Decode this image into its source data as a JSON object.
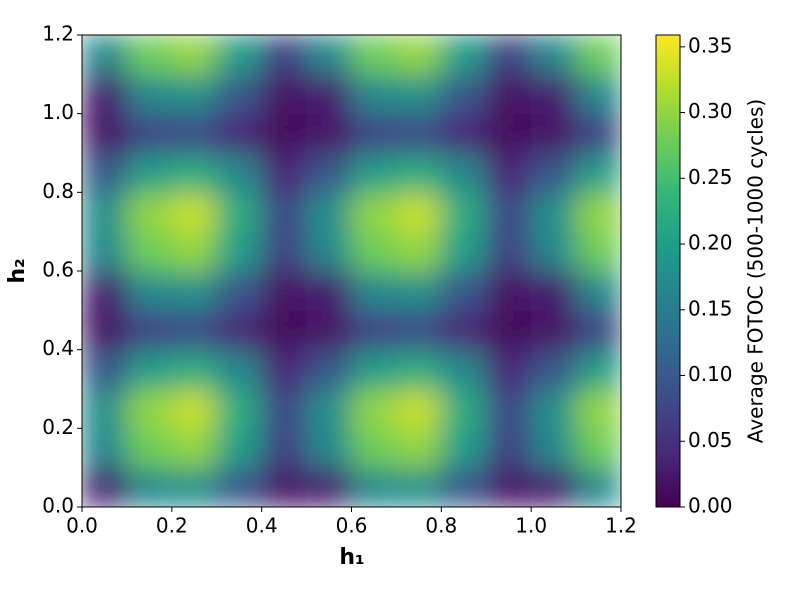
{
  "chart_data": {
    "type": "heatmap",
    "xlabel": "h₁",
    "ylabel": "h₂",
    "colorbar_label": "Average FOTOC (500-1000 cycles)",
    "colormap": "viridis",
    "x": [
      0.05,
      0.15,
      0.25,
      0.35,
      0.45,
      0.55,
      0.65,
      0.75,
      0.85,
      0.95,
      1.05,
      1.15
    ],
    "y": [
      0.05,
      0.15,
      0.25,
      0.35,
      0.45,
      0.55,
      0.65,
      0.75,
      0.85,
      0.95,
      1.05,
      1.15
    ],
    "z": [
      [
        0.03,
        0.17,
        0.18,
        0.1,
        0.02,
        0.03,
        0.17,
        0.18,
        0.1,
        0.02,
        0.03,
        0.17
      ],
      [
        0.17,
        0.28,
        0.3,
        0.2,
        0.07,
        0.17,
        0.28,
        0.3,
        0.2,
        0.07,
        0.17,
        0.28
      ],
      [
        0.18,
        0.3,
        0.33,
        0.22,
        0.08,
        0.18,
        0.3,
        0.33,
        0.22,
        0.08,
        0.18,
        0.3
      ],
      [
        0.1,
        0.2,
        0.22,
        0.17,
        0.04,
        0.1,
        0.2,
        0.22,
        0.17,
        0.04,
        0.1,
        0.2
      ],
      [
        0.02,
        0.07,
        0.08,
        0.04,
        0.01,
        0.02,
        0.07,
        0.08,
        0.04,
        0.01,
        0.02,
        0.07
      ],
      [
        0.03,
        0.17,
        0.18,
        0.1,
        0.02,
        0.03,
        0.17,
        0.18,
        0.1,
        0.02,
        0.03,
        0.17
      ],
      [
        0.17,
        0.28,
        0.3,
        0.2,
        0.07,
        0.17,
        0.28,
        0.3,
        0.2,
        0.07,
        0.17,
        0.28
      ],
      [
        0.18,
        0.3,
        0.33,
        0.22,
        0.08,
        0.18,
        0.3,
        0.33,
        0.22,
        0.08,
        0.18,
        0.3
      ],
      [
        0.1,
        0.2,
        0.22,
        0.17,
        0.04,
        0.1,
        0.2,
        0.22,
        0.17,
        0.04,
        0.1,
        0.2
      ],
      [
        0.02,
        0.07,
        0.08,
        0.04,
        0.01,
        0.02,
        0.07,
        0.08,
        0.04,
        0.01,
        0.02,
        0.07
      ],
      [
        0.03,
        0.17,
        0.18,
        0.1,
        0.02,
        0.03,
        0.17,
        0.18,
        0.1,
        0.02,
        0.03,
        0.17
      ],
      [
        0.17,
        0.28,
        0.3,
        0.2,
        0.07,
        0.17,
        0.28,
        0.3,
        0.2,
        0.07,
        0.17,
        0.28
      ]
    ],
    "xlim": [
      0,
      1.2
    ],
    "ylim": [
      0,
      1.2
    ],
    "clim": [
      0,
      0.359
    ],
    "xticks": [
      {
        "value": 0,
        "label": "0.0"
      },
      0.2,
      0.4,
      0.6,
      0.8,
      {
        "value": 1,
        "label": "1.0"
      },
      1.2
    ],
    "yticks": [
      {
        "value": 0,
        "label": "0.0"
      },
      0.2,
      0.4,
      0.6,
      0.8,
      {
        "value": 1,
        "label": "1.0"
      },
      1.2
    ],
    "cticks": [
      {
        "value": 0,
        "label": "0.00"
      },
      0.05,
      {
        "value": 0.1,
        "label": "0.10"
      },
      0.15,
      {
        "value": 0.2,
        "label": "0.20"
      },
      0.25,
      {
        "value": 0.3,
        "label": "0.30"
      },
      0.35
    ]
  }
}
